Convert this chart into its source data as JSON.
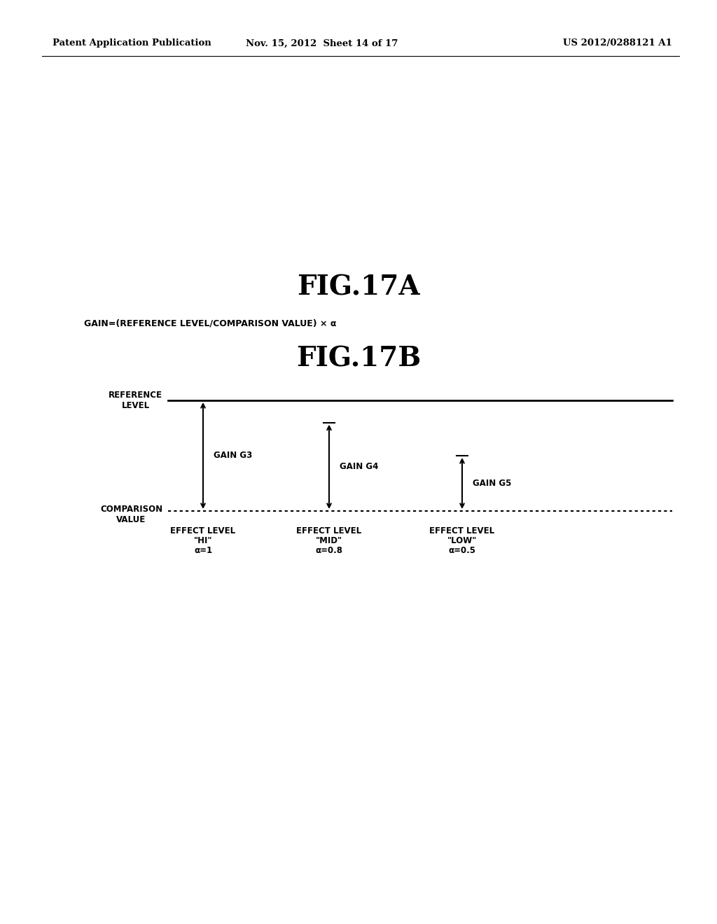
{
  "header_left": "Patent Application Publication",
  "header_mid": "Nov. 15, 2012  Sheet 14 of 17",
  "header_right": "US 2012/0288121 A1",
  "fig17a_title": "FIG.17A",
  "fig17a_formula": "GAIN=(REFERENCE LEVEL/COMPARISON VALUE) × α",
  "fig17b_title": "FIG.17B",
  "ref_level_label": "REFERENCE\nLEVEL",
  "comp_value_label": "COMPARISON\nVALUE",
  "gain_g3_label": "GAIN G3",
  "gain_g4_label": "GAIN G4",
  "gain_g5_label": "GAIN G5",
  "effect_hi_line1": "EFFECT LEVEL",
  "effect_hi_line2": "\"HI\"",
  "effect_hi_line3": "α=1",
  "effect_mid_line1": "EFFECT LEVEL",
  "effect_mid_line2": "\"MID\"",
  "effect_mid_line3": "α=0.8",
  "effect_low_line1": "EFFECT LEVEL",
  "effect_low_line2": "\"LOW\"",
  "effect_low_line3": "α=0.5",
  "background_color": "#ffffff",
  "text_color": "#000000"
}
